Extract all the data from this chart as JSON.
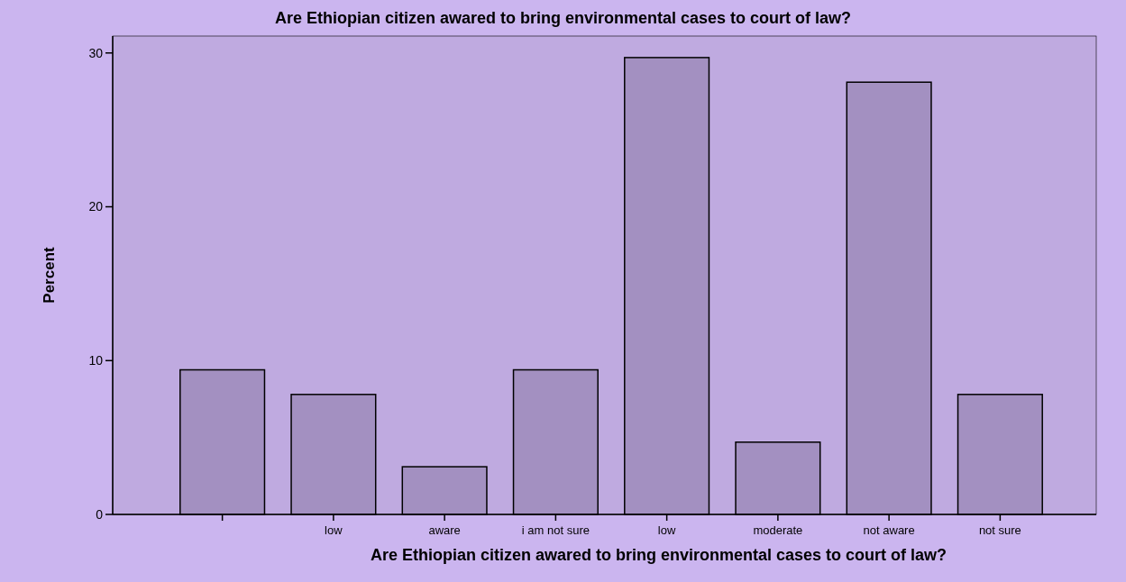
{
  "chart_data": {
    "type": "bar",
    "title": "Are Ethiopian citizen awared to bring environmental cases to court of law?",
    "xlabel": "Are Ethiopian citizen awared to bring environmental cases to court of law?",
    "ylabel": "Percent",
    "categories": [
      null,
      "low",
      "aware",
      "i am not sure",
      "low",
      "moderate",
      "not aware",
      "not sure"
    ],
    "values": [
      9.4,
      7.8,
      3.1,
      9.4,
      29.7,
      4.7,
      28.1,
      7.8
    ],
    "color": "#a390c1",
    "ylim": [
      0,
      31.1
    ],
    "yticks": [
      0,
      10,
      20,
      30
    ],
    "grid": false
  }
}
